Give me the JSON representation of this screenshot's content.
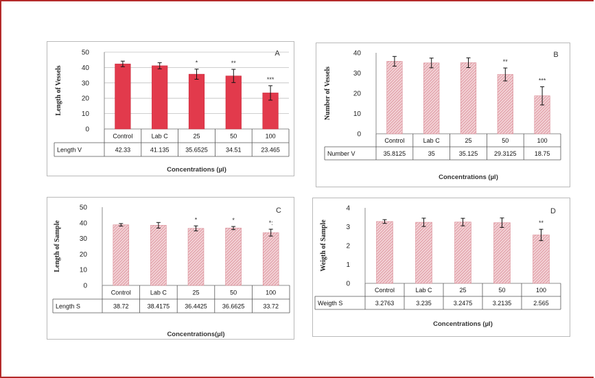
{
  "colors": {
    "frame": "#b42a2a",
    "solid_bar": "#e23a4c",
    "hatch_bar": "#d98a94",
    "grid": "#bfbfbf",
    "error": "#111111"
  },
  "chart_data": [
    {
      "panel_letter": "A",
      "type": "bar",
      "pattern": "solid",
      "categories": [
        "Control",
        "Lab C",
        "25",
        "50",
        "100"
      ],
      "series": [
        {
          "name": "Length V",
          "values": [
            42.33,
            41.135,
            35.6525,
            34.51,
            23.465
          ]
        }
      ],
      "table_values": [
        "42.33",
        "41.135",
        "35.6525",
        "34.51",
        "23.465"
      ],
      "error": [
        1.8,
        2.0,
        3.3,
        4.3,
        4.7
      ],
      "significance": [
        "",
        "",
        "*",
        "**",
        "***"
      ],
      "ylabel": "Length of Vessels",
      "xlabel": "Concentrations (µl)",
      "ylim": [
        0,
        50
      ],
      "yticks": [
        0,
        10,
        20,
        30,
        40,
        50
      ],
      "grid": true,
      "legend": "none"
    },
    {
      "panel_letter": "B",
      "type": "bar",
      "pattern": "hatched",
      "categories": [
        "Control",
        "Lab C",
        "25",
        "50",
        "100"
      ],
      "series": [
        {
          "name": "Number V",
          "values": [
            35.8125,
            35,
            35.125,
            29.3125,
            18.75
          ]
        }
      ],
      "table_values": [
        "35.8125",
        "35",
        "35.125",
        "29.3125",
        "18.75"
      ],
      "error": [
        2.4,
        2.4,
        2.4,
        3.2,
        4.5
      ],
      "significance": [
        "",
        "",
        "",
        "**",
        "***"
      ],
      "ylabel": "Number of Vessels",
      "xlabel": "Concentrations (µl)",
      "ylim": [
        0,
        40
      ],
      "yticks": [
        0,
        10,
        20,
        30,
        40
      ],
      "grid": false,
      "legend": "none"
    },
    {
      "panel_letter": "C",
      "type": "bar",
      "pattern": "hatched",
      "categories": [
        "Control",
        "Lab C",
        "25",
        "50",
        "100"
      ],
      "series": [
        {
          "name": "Length S",
          "values": [
            38.72,
            38.4175,
            36.4425,
            36.6625,
            33.72
          ]
        }
      ],
      "table_values": [
        "38.72",
        "38.4175",
        "36.4425",
        "36.6625",
        "33.72"
      ],
      "error": [
        0.8,
        1.8,
        1.6,
        1.0,
        2.2
      ],
      "significance": [
        "",
        "",
        "*",
        "*",
        "*:"
      ],
      "ylabel": "Length of Sample",
      "xlabel": "Concentrations(µl)",
      "ylim": [
        0,
        50
      ],
      "yticks": [
        0,
        10,
        20,
        30,
        40,
        50
      ],
      "grid": false,
      "legend": "none"
    },
    {
      "panel_letter": "D",
      "type": "bar",
      "pattern": "hatched",
      "categories": [
        "Control",
        "Lab C",
        "25",
        "50",
        "100"
      ],
      "series": [
        {
          "name": "Weigth S",
          "values": [
            3.2763,
            3.235,
            3.2475,
            3.2135,
            2.565
          ]
        }
      ],
      "table_values": [
        "3.2763",
        "3.235",
        "3.2475",
        "3.2135",
        "2.565"
      ],
      "error": [
        0.1,
        0.22,
        0.2,
        0.25,
        0.3
      ],
      "significance": [
        "",
        "",
        "",
        "",
        "**"
      ],
      "ylabel": "Weigth of Sample",
      "xlabel": "Concentrations (µl)",
      "ylim": [
        0,
        4
      ],
      "yticks": [
        0,
        1,
        2,
        3,
        4
      ],
      "grid": false,
      "legend": "none"
    }
  ]
}
